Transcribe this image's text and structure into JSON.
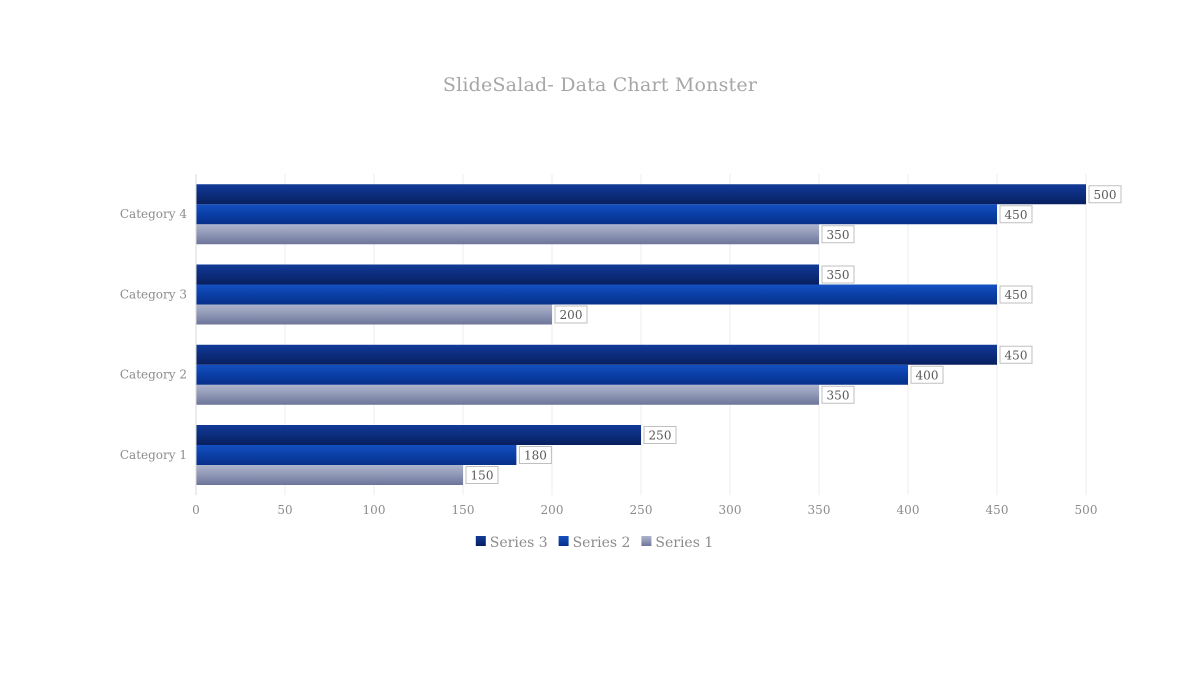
{
  "chart_data": {
    "type": "bar",
    "orientation": "horizontal",
    "title": "SlideSalad- Data Chart Monster",
    "categories": [
      "Category 1",
      "Category 2",
      "Category 3",
      "Category 4"
    ],
    "series": [
      {
        "name": "Series 1",
        "values": [
          150,
          350,
          200,
          350
        ],
        "color": "#8b93b3"
      },
      {
        "name": "Series 2",
        "values": [
          180,
          400,
          450,
          450
        ],
        "color": "#0a3a9e"
      },
      {
        "name": "Series 3",
        "values": [
          250,
          450,
          350,
          500
        ],
        "color": "#0c2a78"
      }
    ],
    "xlim": [
      0,
      500
    ],
    "xticks": [
      0,
      50,
      100,
      150,
      200,
      250,
      300,
      350,
      400,
      450,
      500
    ],
    "xlabel": "",
    "ylabel": "",
    "grid": "vertical",
    "legend": "bottom",
    "legend_order": [
      "Series 3",
      "Series 2",
      "Series 1"
    ],
    "data_labels": true
  }
}
